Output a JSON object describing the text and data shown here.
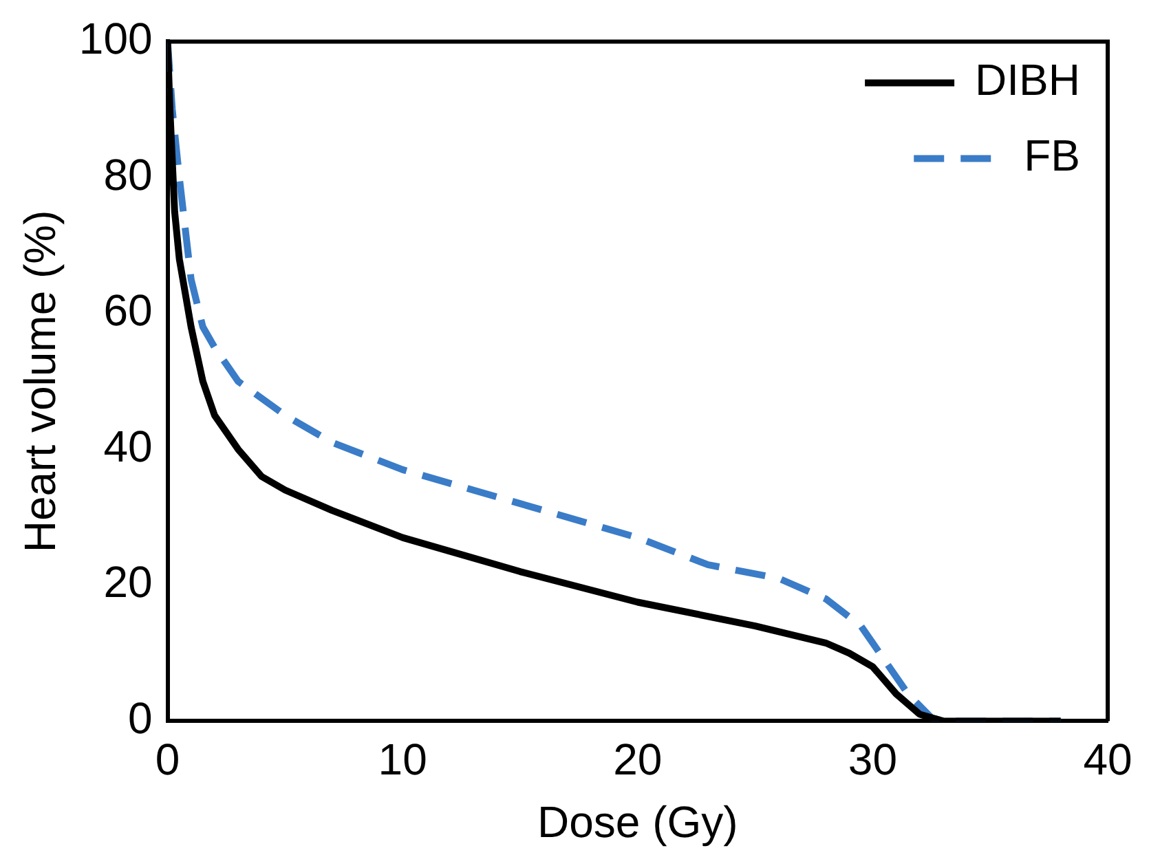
{
  "chart_data": {
    "type": "line",
    "xlabel": "Dose (Gy)",
    "ylabel": "Heart volume (%)",
    "xlim": [
      0,
      40
    ],
    "xticks": [
      0,
      10,
      20,
      30,
      40
    ],
    "ylim": [
      0,
      100
    ],
    "yticks": [
      0,
      20,
      40,
      60,
      80,
      100
    ],
    "grid": false,
    "legend": "top right",
    "marker": "none",
    "series": [
      {
        "name": "DIBH",
        "color": "#000000",
        "line_style": "solid",
        "x": [
          0,
          0.1,
          0.3,
          0.5,
          1,
          1.5,
          2,
          3,
          4,
          5,
          7,
          10,
          12,
          15,
          20,
          25,
          28,
          29,
          30,
          31,
          32,
          33,
          38
        ],
        "values": [
          100,
          90,
          75,
          68,
          58,
          50,
          45,
          40,
          36,
          34,
          31,
          27,
          25,
          22,
          17.5,
          14,
          11.5,
          10,
          8,
          4,
          1,
          0,
          0
        ]
      },
      {
        "name": "FB",
        "color": "#3a7cc7",
        "line_style": "dashed",
        "x": [
          0,
          0.2,
          0.5,
          1,
          1.5,
          2,
          3,
          5,
          7,
          10,
          13,
          16,
          20,
          23,
          26,
          28,
          29.5,
          30.5,
          31.5,
          32.5,
          33,
          38
        ],
        "values": [
          100,
          90,
          80,
          65,
          58,
          55,
          50,
          45,
          41,
          37,
          34,
          31,
          27,
          23,
          21,
          18,
          14,
          9,
          4,
          0.5,
          0,
          0
        ]
      }
    ]
  }
}
